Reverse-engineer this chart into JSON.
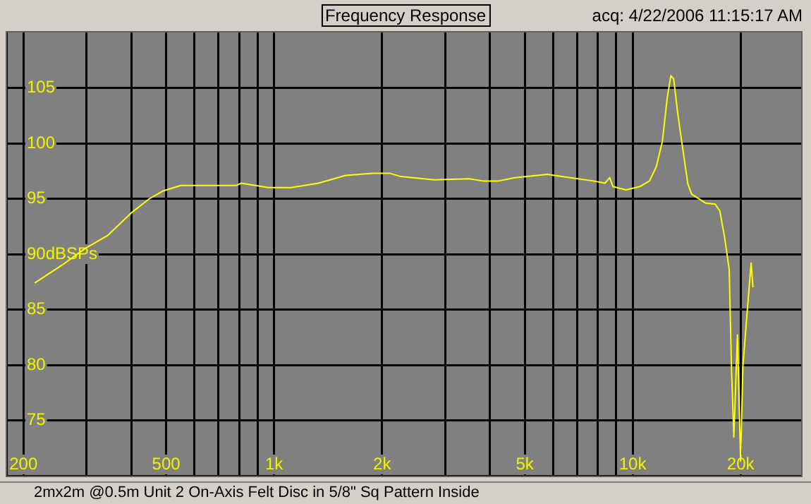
{
  "chart_data": {
    "type": "line",
    "title": "Frequency Response",
    "annotations": [
      "acq: 4/22/2006 11:15:17 AM",
      "2mx2m @0.5m Unit 2 On-Axis Felt Disc in 5/8\" Sq Pattern Inside"
    ],
    "x": [
      215,
      256,
      297,
      344,
      399,
      449,
      490,
      550,
      785,
      810,
      964,
      1117,
      1330,
      1582,
      1893,
      2099,
      2258,
      2795,
      3505,
      3823,
      4224,
      4692,
      5777,
      6708,
      7773,
      8370,
      8630,
      8806,
      9578,
      10491,
      11139,
      11643,
      12104,
      12484,
      12783,
      13014,
      13345,
      13752,
      14260,
      14610,
      16000,
      16990,
      17500,
      18030,
      18590,
      18870,
      19150,
      19600,
      20000,
      20300,
      20900,
      21400,
      21650
    ],
    "series": [
      {
        "color": "#ffff00",
        "values": [
          87.4,
          89.0,
          90.5,
          91.7,
          93.7,
          95.0,
          95.7,
          96.2,
          96.2,
          96.4,
          96.0,
          96.0,
          96.4,
          97.1,
          97.3,
          97.3,
          97.0,
          96.7,
          96.8,
          96.6,
          96.6,
          96.9,
          97.2,
          96.9,
          96.6,
          96.4,
          96.9,
          96.1,
          95.8,
          96.1,
          96.6,
          97.9,
          100.2,
          104.1,
          106.1,
          105.8,
          102.8,
          99.8,
          96.3,
          95.4,
          94.6,
          94.5,
          93.9,
          91.6,
          88.6,
          79.5,
          73.5,
          82.7,
          71.3,
          79.9,
          85.1,
          89.2,
          87.0
        ]
      }
    ],
    "xlim": [
      180,
      29500
    ],
    "xticks": [
      200,
      {
        "value": 300,
        "label": null
      },
      {
        "value": 400,
        "label": null
      },
      500,
      {
        "value": 600,
        "label": null
      },
      {
        "value": 700,
        "label": null
      },
      {
        "value": 800,
        "label": null
      },
      {
        "value": 900,
        "label": null
      },
      {
        "value": 1000,
        "label": "1k"
      },
      {
        "value": 2000,
        "label": "2k"
      },
      {
        "value": 3000,
        "label": null
      },
      {
        "value": 4000,
        "label": null
      },
      {
        "value": 5000,
        "label": "5k"
      },
      {
        "value": 6000,
        "label": null
      },
      {
        "value": 7000,
        "label": null
      },
      {
        "value": 8000,
        "label": null
      },
      {
        "value": 9000,
        "label": null
      },
      {
        "value": 10000,
        "label": "10k"
      },
      {
        "value": 20000,
        "label": "20k"
      }
    ],
    "ylim": [
      70,
      110
    ],
    "yticks": [
      75,
      80,
      85,
      {
        "value": 90,
        "label": "90dBSPs"
      },
      95,
      100,
      105
    ],
    "log": "x",
    "grid": true,
    "legend": false,
    "marker": "none",
    "line_style": "solid"
  }
}
